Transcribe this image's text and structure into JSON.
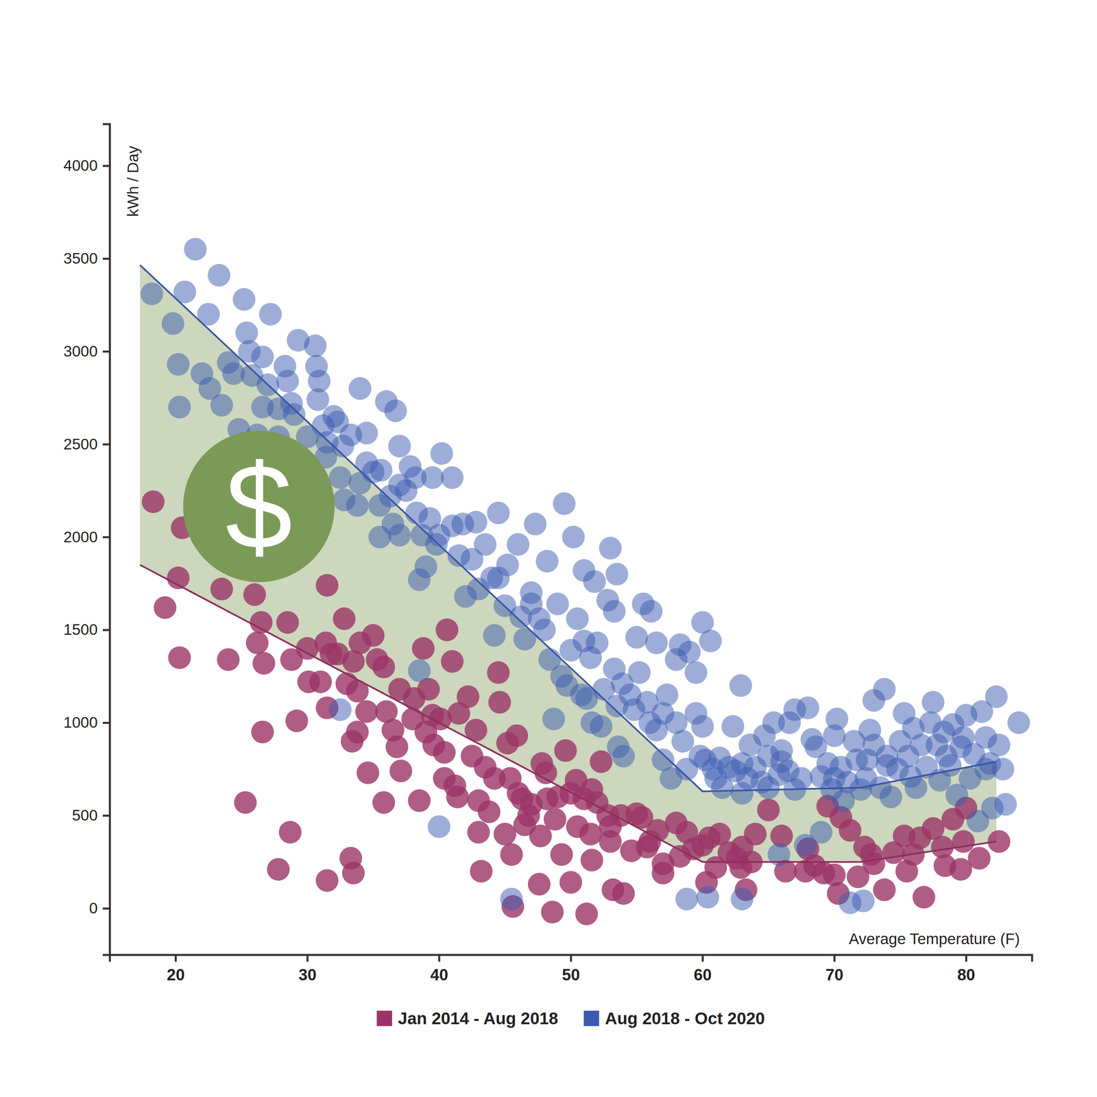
{
  "chart_data": {
    "type": "scatter",
    "x_label": "Average Temperature (F)",
    "y_label": "kWh / Day",
    "xlim": [
      15,
      85
    ],
    "ylim": [
      -250,
      4225
    ],
    "xticks": [
      20,
      30,
      40,
      50,
      60,
      70,
      80
    ],
    "yticks": [
      0,
      500,
      1000,
      1500,
      2000,
      2500,
      3000,
      3500,
      4000
    ],
    "grid": false,
    "legend": "bottom",
    "annotations": [
      "$"
    ],
    "series": [
      {
        "name": "Jan 2014 - Aug 2018",
        "type": "scatter",
        "marker": "circle",
        "color": "#9b3567",
        "x": [
          18.3,
          19.2,
          20.2,
          20.3,
          20.5,
          23.5,
          24,
          25.3,
          26,
          26.2,
          26.5,
          26.7,
          26.6,
          27.8,
          28.5,
          28.7,
          28.8,
          29.2,
          30,
          30.1,
          31,
          31.4,
          31.5,
          31.5,
          31.5,
          31.8,
          32.3,
          32.8,
          33,
          33.3,
          33.4,
          33.5,
          33.5,
          33.8,
          33.8,
          34,
          34.5,
          34.6,
          35,
          35.3,
          35.8,
          35.8,
          36,
          36.5,
          36.8,
          37,
          37.1,
          38,
          38.1,
          38.5,
          38.8,
          39,
          39.2,
          39.5,
          39.6,
          40.1,
          40.4,
          40.4,
          40.6,
          41,
          41.2,
          41.4,
          41.5,
          42.2,
          42.5,
          42.8,
          43,
          43,
          43.2,
          43.5,
          43.8,
          44.2,
          44.5,
          44.6,
          45,
          45.2,
          45.4,
          45.5,
          45.6,
          45.9,
          46,
          46.3,
          46.5,
          46.8,
          47,
          47.6,
          47.7,
          47.8,
          48.1,
          48.2,
          48.6,
          48.8,
          49,
          49.3,
          49.6,
          50,
          50,
          50.4,
          50.5,
          51,
          51.2,
          51.5,
          51.6,
          51.6,
          52,
          52.3,
          52.8,
          53,
          53,
          53.2,
          53.8,
          54,
          54.6,
          55,
          55.4,
          55.8,
          56,
          56.6,
          57,
          57,
          58,
          58.3,
          58.8,
          59.3,
          60,
          60.3,
          60.5,
          61.3,
          61,
          62,
          62.6,
          62.9,
          63,
          63.3,
          63.7,
          64,
          65,
          66,
          66.3,
          67.8,
          68,
          68.5,
          69.2,
          69.5,
          70,
          70.3,
          70.5,
          71.2,
          71.8,
          72.3,
          72.8,
          73,
          73.8,
          74.5,
          75.3,
          75.5,
          76,
          76.5,
          76.8,
          77.5,
          78.2,
          78.4,
          79,
          79.6,
          79.8,
          80,
          81,
          82.5
        ],
        "values": [
          2190,
          1620,
          1780,
          1350,
          2050,
          1720,
          1340,
          570,
          1690,
          1430,
          1540,
          1320,
          950,
          210,
          1540,
          410,
          1340,
          1010,
          1400,
          1220,
          1220,
          1430,
          1740,
          150,
          1080,
          1370,
          1370,
          1560,
          1210,
          270,
          900,
          190,
          1330,
          1170,
          950,
          1430,
          1060,
          730,
          1470,
          1340,
          1300,
          570,
          1060,
          960,
          870,
          1180,
          740,
          1020,
          1130,
          580,
          1400,
          950,
          1180,
          1040,
          880,
          1020,
          700,
          840,
          1500,
          1330,
          660,
          600,
          1050,
          1140,
          820,
          960,
          410,
          580,
          200,
          760,
          520,
          700,
          1270,
          1110,
          400,
          890,
          700,
          290,
          10,
          930,
          620,
          590,
          450,
          500,
          560,
          130,
          390,
          780,
          730,
          590,
          -20,
          480,
          600,
          290,
          850,
          620,
          140,
          690,
          440,
          590,
          -30,
          400,
          640,
          260,
          570,
          790,
          500,
          440,
          360,
          100,
          500,
          80,
          310,
          510,
          490,
          330,
          360,
          420,
          190,
          240,
          460,
          280,
          410,
          320,
          340,
          140,
          380,
          400,
          220,
          300,
          270,
          220,
          330,
          100,
          250,
          400,
          530,
          390,
          200,
          200,
          320,
          230,
          190,
          550,
          180,
          80,
          490,
          420,
          170,
          330,
          290,
          240,
          100,
          300,
          390,
          200,
          290,
          380,
          60,
          430,
          330,
          230,
          480,
          210,
          360,
          540,
          270,
          360
        ]
      },
      {
        "name": "Aug 2018 - Oct 2020",
        "type": "scatter",
        "marker": "circle",
        "color": "#3b5cb0",
        "x": [
          18.2,
          19.8,
          20.2,
          20.3,
          20.7,
          21.5,
          22,
          22.5,
          22.6,
          23.3,
          23.5,
          24,
          24.4,
          24.8,
          25.2,
          25.4,
          25.6,
          25.8,
          26.2,
          26.6,
          26.6,
          27,
          27.2,
          27.8,
          27.8,
          28.3,
          28.5,
          28.8,
          29,
          29.3,
          30,
          30.6,
          30.7,
          30.8,
          30.9,
          31.2,
          31.4,
          31.5,
          32,
          32.3,
          32.7,
          32.5,
          32.8,
          32.5,
          33.3,
          33.8,
          34,
          34,
          34.5,
          34.5,
          35,
          35.5,
          35.6,
          35.5,
          36,
          36.3,
          36.5,
          36.7,
          37,
          37,
          37,
          37.5,
          37.8,
          38.2,
          38.3,
          38.5,
          38.7,
          38.5,
          39,
          39.3,
          39.5,
          39.8,
          40,
          40,
          40.2,
          41,
          41,
          41.5,
          41.8,
          42,
          42.5,
          42.8,
          43,
          43.5,
          44,
          44.2,
          44.5,
          44.5,
          45,
          45.2,
          45.5,
          46,
          46.2,
          46.5,
          47,
          47,
          47.3,
          47.6,
          48,
          48.2,
          48.4,
          48.7,
          49,
          49.3,
          49.5,
          49.7,
          50,
          50.2,
          50.5,
          50.8,
          51,
          51,
          51.2,
          51.5,
          51.6,
          51.8,
          52,
          52.3,
          52.5,
          52.8,
          53,
          53.3,
          53.3,
          53.5,
          53.5,
          53.6,
          53.9,
          54,
          54.5,
          54.8,
          55,
          55.2,
          55.5,
          55.8,
          56,
          56.1,
          56.5,
          56.5,
          57,
          57,
          57.3,
          57.6,
          58,
          58,
          58.3,
          58.5,
          58.8,
          58.8,
          59,
          59.5,
          59.5,
          59.8,
          60,
          60,
          60.2,
          60.4,
          60.8,
          60.6,
          61,
          61.3,
          61.5,
          62,
          62.3,
          62.5,
          62.9,
          63,
          63,
          63.4,
          63.6,
          64,
          64.5,
          64.7,
          65,
          65.4,
          65.8,
          65.8,
          66,
          66.5,
          66.6,
          67,
          67,
          67.5,
          67.8,
          68,
          68.3,
          68.6,
          69,
          69,
          69.5,
          69.8,
          70,
          70.2,
          70.5,
          70.7,
          71,
          71.2,
          71.5,
          71.7,
          72,
          72.2,
          72.4,
          72.7,
          73,
          73,
          73.5,
          73.8,
          74,
          74.3,
          74.8,
          75,
          75.3,
          75.6,
          75.8,
          76,
          76.2,
          76.6,
          77,
          77.3,
          77.5,
          77.8,
          78,
          78.3,
          78.5,
          78.8,
          79,
          79.3,
          79.6,
          79.8,
          80,
          80.3,
          80.6,
          80.9,
          81.2,
          81.5,
          81.8,
          82,
          82.3,
          82.5,
          82.8,
          83,
          84,
          81.5,
          74,
          66,
          63,
          65,
          70,
          72.5
        ],
        "values": [
          3310,
          3150,
          2930,
          2700,
          3320,
          3550,
          2880,
          3200,
          2800,
          3410,
          2710,
          2940,
          2880,
          2580,
          3280,
          3100,
          3000,
          2870,
          2550,
          2700,
          2970,
          2820,
          3200,
          2540,
          2690,
          2920,
          2840,
          2720,
          2660,
          3060,
          2540,
          3030,
          2920,
          2740,
          2840,
          2600,
          2430,
          2510,
          2650,
          2620,
          2490,
          2320,
          2200,
          1070,
          2550,
          2170,
          2800,
          2290,
          2560,
          2400,
          2350,
          2000,
          2360,
          2170,
          2730,
          2220,
          2070,
          2680,
          2490,
          2280,
          2010,
          2250,
          2380,
          2320,
          2130,
          1770,
          2010,
          1280,
          1840,
          2100,
          2320,
          1960,
          2010,
          440,
          2450,
          2060,
          2320,
          1900,
          2070,
          1680,
          1880,
          2080,
          1720,
          1960,
          1780,
          1470,
          2130,
          1780,
          1630,
          1850,
          50,
          1960,
          1570,
          1450,
          1640,
          1700,
          2070,
          1560,
          1500,
          1870,
          1340,
          1020,
          1640,
          1250,
          2180,
          1200,
          1390,
          2000,
          1560,
          1150,
          1820,
          1440,
          1130,
          1350,
          1000,
          1760,
          1430,
          980,
          1180,
          1660,
          1940,
          1600,
          1290,
          1800,
          1090,
          870,
          1210,
          820,
          1150,
          1070,
          1460,
          1270,
          1640,
          1110,
          1000,
          1600,
          960,
          1430,
          1050,
          800,
          1150,
          700,
          1340,
          1000,
          1420,
          900,
          750,
          50,
          1380,
          1270,
          1050,
          820,
          1540,
          980,
          800,
          60,
          750,
          1440,
          700,
          810,
          650,
          760,
          980,
          740,
          1200,
          620,
          50,
          700,
          880,
          760,
          680,
          930,
          820,
          1000,
          720,
          290,
          850,
          740,
          1000,
          1070,
          640,
          700,
          340,
          1080,
          910,
          870,
          710,
          410,
          780,
          640,
          930,
          1020,
          760,
          580,
          680,
          30,
          900,
          800,
          640,
          40,
          700,
          960,
          880,
          1120,
          650,
          1180,
          820,
          600,
          750,
          900,
          1050,
          820,
          710,
          970,
          650,
          880,
          760,
          1000,
          1110,
          880,
          690,
          950,
          820,
          770,
          990,
          610,
          870,
          920,
          1040,
          700,
          830,
          470,
          1060,
          920,
          780,
          540,
          1140,
          880,
          750,
          560,
          1000,
          750,
          770,
          790,
          780,
          650,
          700,
          800
        ]
      },
      {
        "type": "line",
        "line_style": "solid",
        "color": "#8e2c5c",
        "x": [
          17.3,
          60,
          72,
          82.3
        ],
        "values": [
          1850,
          250,
          250,
          360
        ]
      },
      {
        "type": "line",
        "line_style": "solid",
        "color": "#3a56a6",
        "x": [
          17.3,
          60,
          72,
          82.3
        ],
        "values": [
          3465,
          630,
          650,
          790
        ]
      }
    ]
  }
}
